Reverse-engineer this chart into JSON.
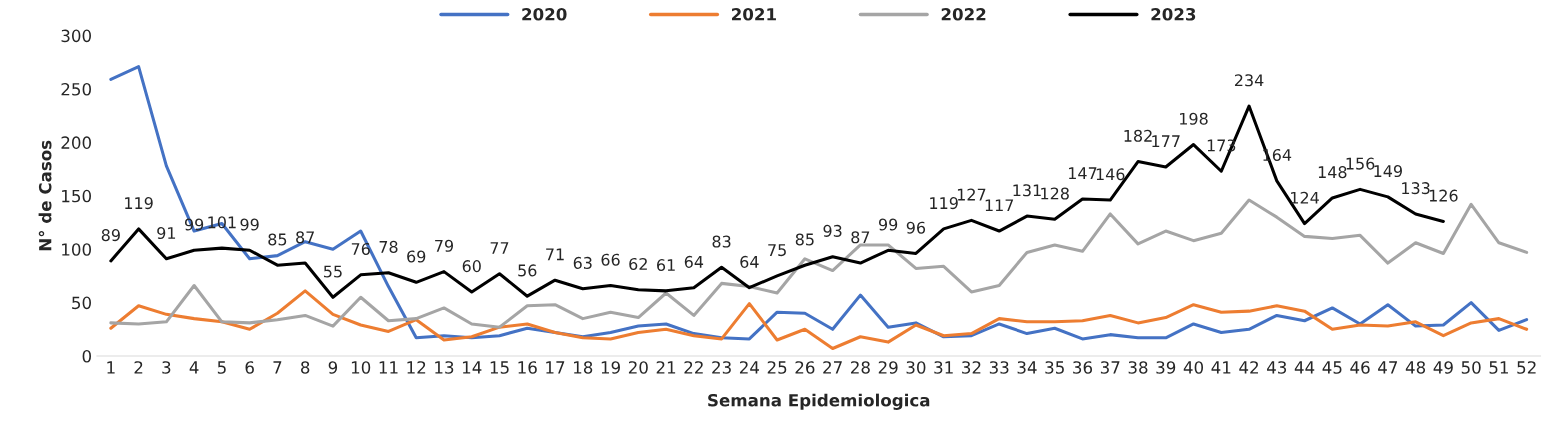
{
  "chart_data": {
    "type": "line",
    "xlabel": "Semana Epidemiologica",
    "ylabel": "N° de Casos",
    "categories": [
      "1",
      "2",
      "3",
      "4",
      "5",
      "6",
      "7",
      "8",
      "9",
      "10",
      "11",
      "12",
      "13",
      "14",
      "15",
      "16",
      "17",
      "18",
      "19",
      "20",
      "21",
      "22",
      "23",
      "24",
      "25",
      "26",
      "27",
      "28",
      "29",
      "30",
      "31",
      "32",
      "33",
      "34",
      "35",
      "36",
      "37",
      "38",
      "39",
      "40",
      "41",
      "42",
      "43",
      "44",
      "45",
      "46",
      "47",
      "48",
      "49",
      "50",
      "51",
      "52"
    ],
    "ylim": [
      0,
      300
    ],
    "yticks": [
      0,
      50,
      100,
      150,
      200,
      250,
      300
    ],
    "grid": false,
    "legend": "top",
    "marker": "none",
    "line_style": "solid",
    "series": [
      {
        "name": "2020",
        "color": "#4472c4",
        "values": [
          259,
          271,
          178,
          117,
          124,
          91,
          94,
          107,
          100,
          117,
          65,
          17,
          19,
          17,
          19,
          26,
          22,
          18,
          22,
          28,
          30,
          21,
          17,
          16,
          41,
          40,
          25,
          57,
          27,
          31,
          18,
          19,
          30,
          21,
          26,
          16,
          20,
          17,
          17,
          30,
          22,
          25,
          38,
          33,
          45,
          30,
          48,
          28,
          29,
          50,
          24,
          34
        ]
      },
      {
        "name": "2021",
        "color": "#ed7d31",
        "values": [
          26,
          47,
          39,
          35,
          32,
          25,
          40,
          61,
          39,
          29,
          23,
          34,
          15,
          18,
          27,
          30,
          22,
          17,
          16,
          22,
          25,
          19,
          16,
          49,
          15,
          25,
          7,
          18,
          13,
          29,
          19,
          21,
          35,
          32,
          32,
          33,
          38,
          31,
          36,
          48,
          41,
          42,
          47,
          42,
          25,
          29,
          28,
          32,
          19,
          31,
          35,
          25
        ]
      },
      {
        "name": "2022",
        "color": "#a5a5a5",
        "values": [
          31,
          30,
          32,
          66,
          32,
          31,
          34,
          38,
          28,
          55,
          33,
          35,
          45,
          30,
          27,
          47,
          48,
          35,
          41,
          36,
          59,
          38,
          68,
          65,
          59,
          91,
          80,
          104,
          104,
          82,
          84,
          60,
          66,
          97,
          104,
          98,
          133,
          105,
          117,
          108,
          115,
          146,
          130,
          112,
          110,
          113,
          87,
          106,
          96,
          142,
          106,
          97
        ]
      },
      {
        "name": "2023",
        "color": "#000000",
        "data_labels": true,
        "values": [
          89,
          119,
          91,
          99,
          101,
          99,
          85,
          87,
          55,
          76,
          78,
          69,
          79,
          60,
          77,
          56,
          71,
          63,
          66,
          62,
          61,
          64,
          83,
          64,
          75,
          85,
          93,
          87,
          99,
          96,
          119,
          127,
          117,
          131,
          128,
          147,
          146,
          182,
          177,
          198,
          173,
          234,
          164,
          124,
          148,
          156,
          149,
          133,
          126,
          null,
          null,
          null
        ]
      }
    ]
  }
}
